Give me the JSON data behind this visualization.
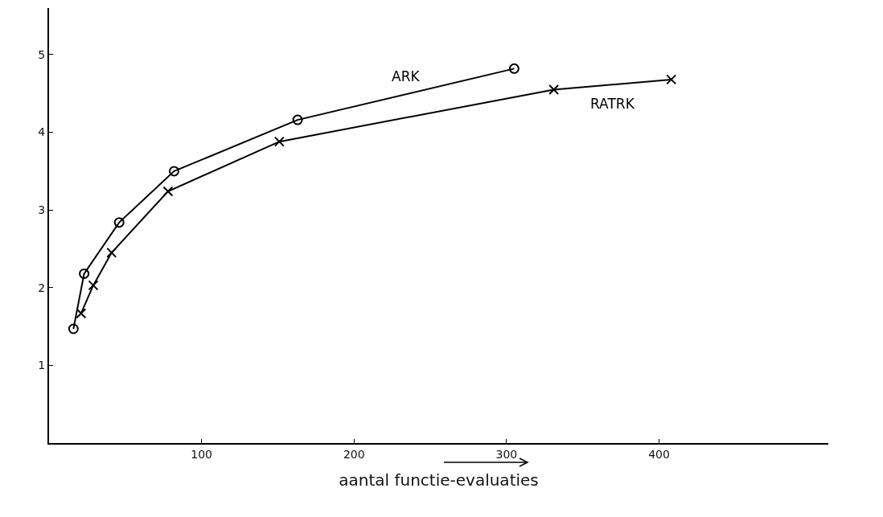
{
  "chart_data": {
    "type": "line",
    "xlabel": "aantal functie-evaluaties",
    "xlim": [
      0,
      511
    ],
    "xticks": [
      100,
      200,
      300,
      400
    ],
    "ylim": [
      0,
      5.6
    ],
    "yticks": [
      1,
      2,
      3,
      4,
      5
    ],
    "grid": false,
    "legend": false,
    "line_style": "solid",
    "series": [
      {
        "name": "ARK",
        "color": "#000000",
        "marker": "circle",
        "x": [
          16,
          23,
          46,
          82,
          163,
          305
        ],
        "values": [
          1.47,
          2.18,
          2.84,
          3.5,
          4.16,
          4.82
        ]
      },
      {
        "name": "RATRK",
        "color": "#000000",
        "marker": "cross",
        "x": [
          21,
          29,
          41,
          78,
          151,
          331,
          408
        ],
        "values": [
          1.67,
          2.03,
          2.45,
          3.24,
          3.88,
          4.55,
          4.68
        ]
      }
    ]
  }
}
